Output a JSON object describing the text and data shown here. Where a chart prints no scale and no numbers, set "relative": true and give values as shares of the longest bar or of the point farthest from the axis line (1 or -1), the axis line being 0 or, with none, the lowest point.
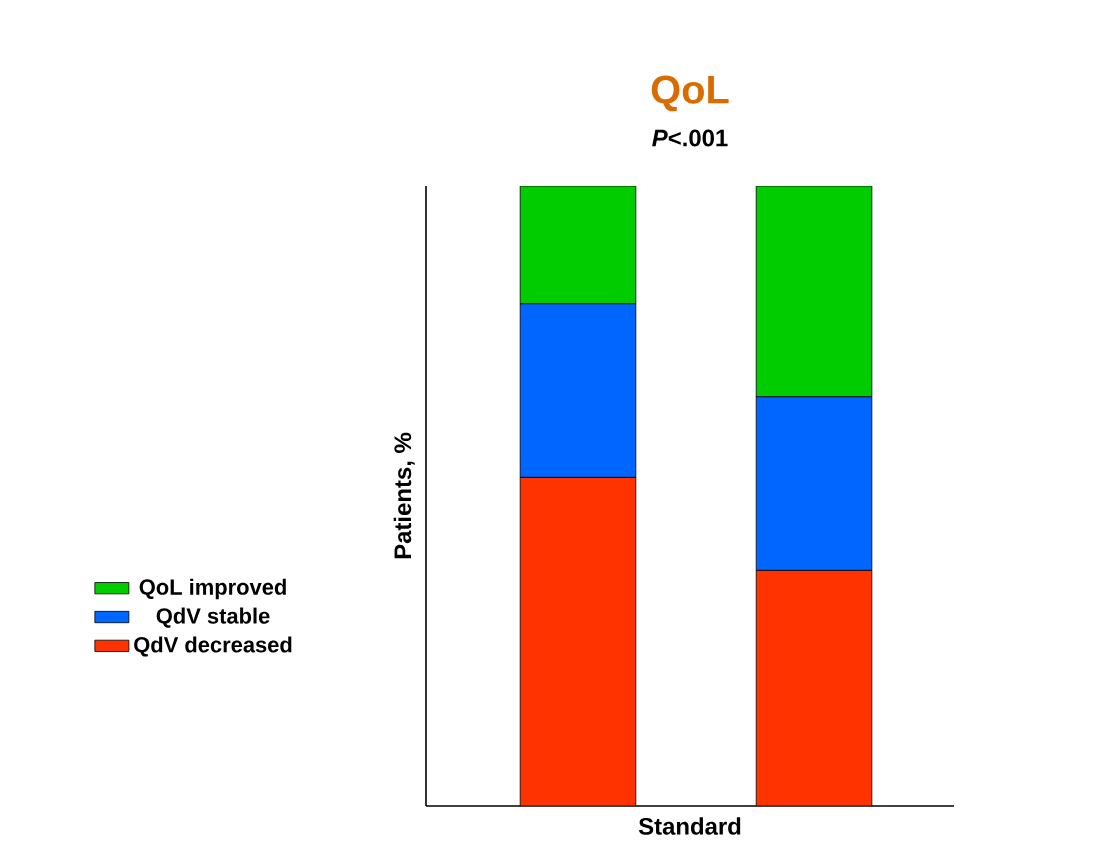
{
  "chart_data": {
    "type": "bar",
    "title": "QoL",
    "subtitle": "*P*<.001",
    "ylabel": "Patients, %",
    "xlabel": "Standard",
    "categories": [
      null,
      null
    ],
    "stacked": true,
    "relative": true,
    "legend": "left",
    "series": [
      {
        "name": "QdV decreased",
        "color": "#ff3300",
        "values": [
          0.53,
          0.38
        ]
      },
      {
        "name": "QdV stable",
        "color": "#0066ff",
        "values": [
          0.28,
          0.28
        ]
      },
      {
        "name": "QoL improved",
        "color": "#00cc00",
        "values": [
          0.19,
          0.34
        ]
      }
    ]
  }
}
